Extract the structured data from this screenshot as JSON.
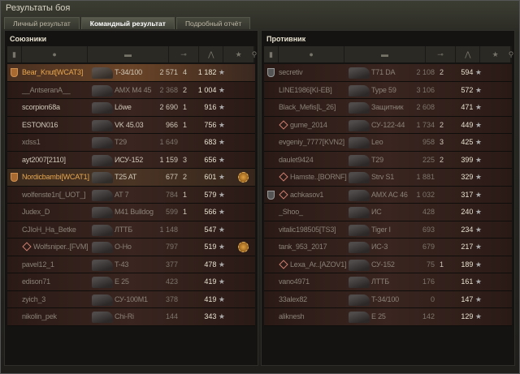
{
  "window": {
    "title": "Результаты боя"
  },
  "tabs": [
    {
      "label": "Личный результат"
    },
    {
      "label": "Командный результат",
      "active": true
    },
    {
      "label": "Подробный отчёт"
    }
  ],
  "columns": {
    "icons": [
      "squad-icon",
      "player-icon",
      "tank-icon",
      "damage-icon",
      "frags-icon",
      "xp-star-icon",
      "medal-icon"
    ],
    "sorted_by": "xp"
  },
  "allies": {
    "title": "Союзники",
    "rows": [
      {
        "name": "Bear_Knut[WCAT3]",
        "tank": "T-34/100",
        "damage": "2 571",
        "kills": "4",
        "xp": "1 182",
        "type": "self",
        "squad": true
      },
      {
        "name": "__AntseranA__",
        "tank": "AMX M4 45",
        "damage": "2 368",
        "kills": "2",
        "xp": "1 004",
        "dim": true
      },
      {
        "name": "scorpion68a",
        "tank": "Löwe",
        "damage": "2 690",
        "kills": "1",
        "xp": "916",
        "bright": true
      },
      {
        "name": "ESTON016",
        "tank": "VK 45.03",
        "damage": "966",
        "kills": "1",
        "xp": "756",
        "bright": true
      },
      {
        "name": "xdss1",
        "tank": "T29",
        "damage": "1 649",
        "kills": "",
        "xp": "683",
        "dim": true
      },
      {
        "name": "ayt2007[2110]",
        "tank": "ИСУ-152",
        "damage": "1 159",
        "kills": "3",
        "xp": "656",
        "bright": true
      },
      {
        "name": "Nordicbambi[WCAT1]",
        "tank": "T25 AT",
        "damage": "677",
        "kills": "2",
        "xp": "601",
        "type": "sq",
        "squad": true,
        "medal": true,
        "bright": true
      },
      {
        "name": "wolfenste1n[_UOT_]",
        "tank": "AT 7",
        "damage": "784",
        "kills": "1",
        "xp": "579",
        "dim": true
      },
      {
        "name": "Judex_D",
        "tank": "M41 Bulldog",
        "damage": "599",
        "kills": "1",
        "xp": "566",
        "dim": true
      },
      {
        "name": "CJIoH_Ha_Betke",
        "tank": "ЛТТБ",
        "damage": "1 148",
        "kills": "",
        "xp": "547",
        "dim": true
      },
      {
        "name": "Wolfsniper..[FVM]",
        "tank": "O-Ho",
        "damage": "797",
        "kills": "",
        "xp": "519",
        "dim": true,
        "diamond": true,
        "medal": true
      },
      {
        "name": "pavel12_1",
        "tank": "T-43",
        "damage": "377",
        "kills": "",
        "xp": "478",
        "dim": true
      },
      {
        "name": "edison71",
        "tank": "E 25",
        "damage": "423",
        "kills": "",
        "xp": "419",
        "dim": true
      },
      {
        "name": "zyich_3",
        "tank": "СУ-100М1",
        "damage": "378",
        "kills": "",
        "xp": "419",
        "dim": true
      },
      {
        "name": "nikolin_pek",
        "tank": "Chi-Ri",
        "damage": "144",
        "kills": "",
        "xp": "343",
        "dim": true
      }
    ]
  },
  "enemies": {
    "title": "Противник",
    "rows": [
      {
        "name": "secretiv",
        "tank": "T71 DA",
        "damage": "2 108",
        "kills": "2",
        "xp": "594",
        "dim": true,
        "squadg": true
      },
      {
        "name": "LINE1986[KI-EB]",
        "tank": "Type 59",
        "damage": "3 106",
        "kills": "",
        "xp": "572",
        "dim": true
      },
      {
        "name": "Black_Mefis[L_26]",
        "tank": "Защитник",
        "damage": "2 608",
        "kills": "",
        "xp": "471",
        "dim": true
      },
      {
        "name": "gume_2014",
        "tank": "СУ-122-44",
        "damage": "1 734",
        "kills": "2",
        "xp": "449",
        "dim": true,
        "diamond": true
      },
      {
        "name": "evgeniy_7777[KVN2]",
        "tank": "Leo",
        "damage": "958",
        "kills": "3",
        "xp": "425",
        "dim": true
      },
      {
        "name": "daulet9424",
        "tank": "T29",
        "damage": "225",
        "kills": "2",
        "xp": "399",
        "dim": true
      },
      {
        "name": "Hamste..[BORNF]",
        "tank": "Strv S1",
        "damage": "1 881",
        "kills": "",
        "xp": "329",
        "dim": true,
        "diamond": true
      },
      {
        "name": "achkasov1",
        "tank": "AMX AC 46",
        "damage": "1 032",
        "kills": "",
        "xp": "317",
        "dim": true,
        "diamond": true,
        "squadg": true
      },
      {
        "name": "_Shoo_",
        "tank": "ИС",
        "damage": "428",
        "kills": "",
        "xp": "240",
        "dim": true
      },
      {
        "name": "vitalic198505[TS3]",
        "tank": "Tiger I",
        "damage": "693",
        "kills": "",
        "xp": "234",
        "dim": true
      },
      {
        "name": "tank_953_2017",
        "tank": "ИС-3",
        "damage": "679",
        "kills": "",
        "xp": "217",
        "dim": true
      },
      {
        "name": "Lexa_Ar..[AZOV1]",
        "tank": "СУ-152",
        "damage": "75",
        "kills": "1",
        "xp": "189",
        "dim": true,
        "diamond": true
      },
      {
        "name": "vano4971",
        "tank": "ЛТТБ",
        "damage": "176",
        "kills": "",
        "xp": "161",
        "dim": true
      },
      {
        "name": "33alex82",
        "tank": "T-34/100",
        "damage": "0",
        "kills": "",
        "xp": "147",
        "dim": true
      },
      {
        "name": "aliknesh",
        "tank": "E 25",
        "damage": "142",
        "kills": "",
        "xp": "129",
        "dim": true
      }
    ]
  }
}
